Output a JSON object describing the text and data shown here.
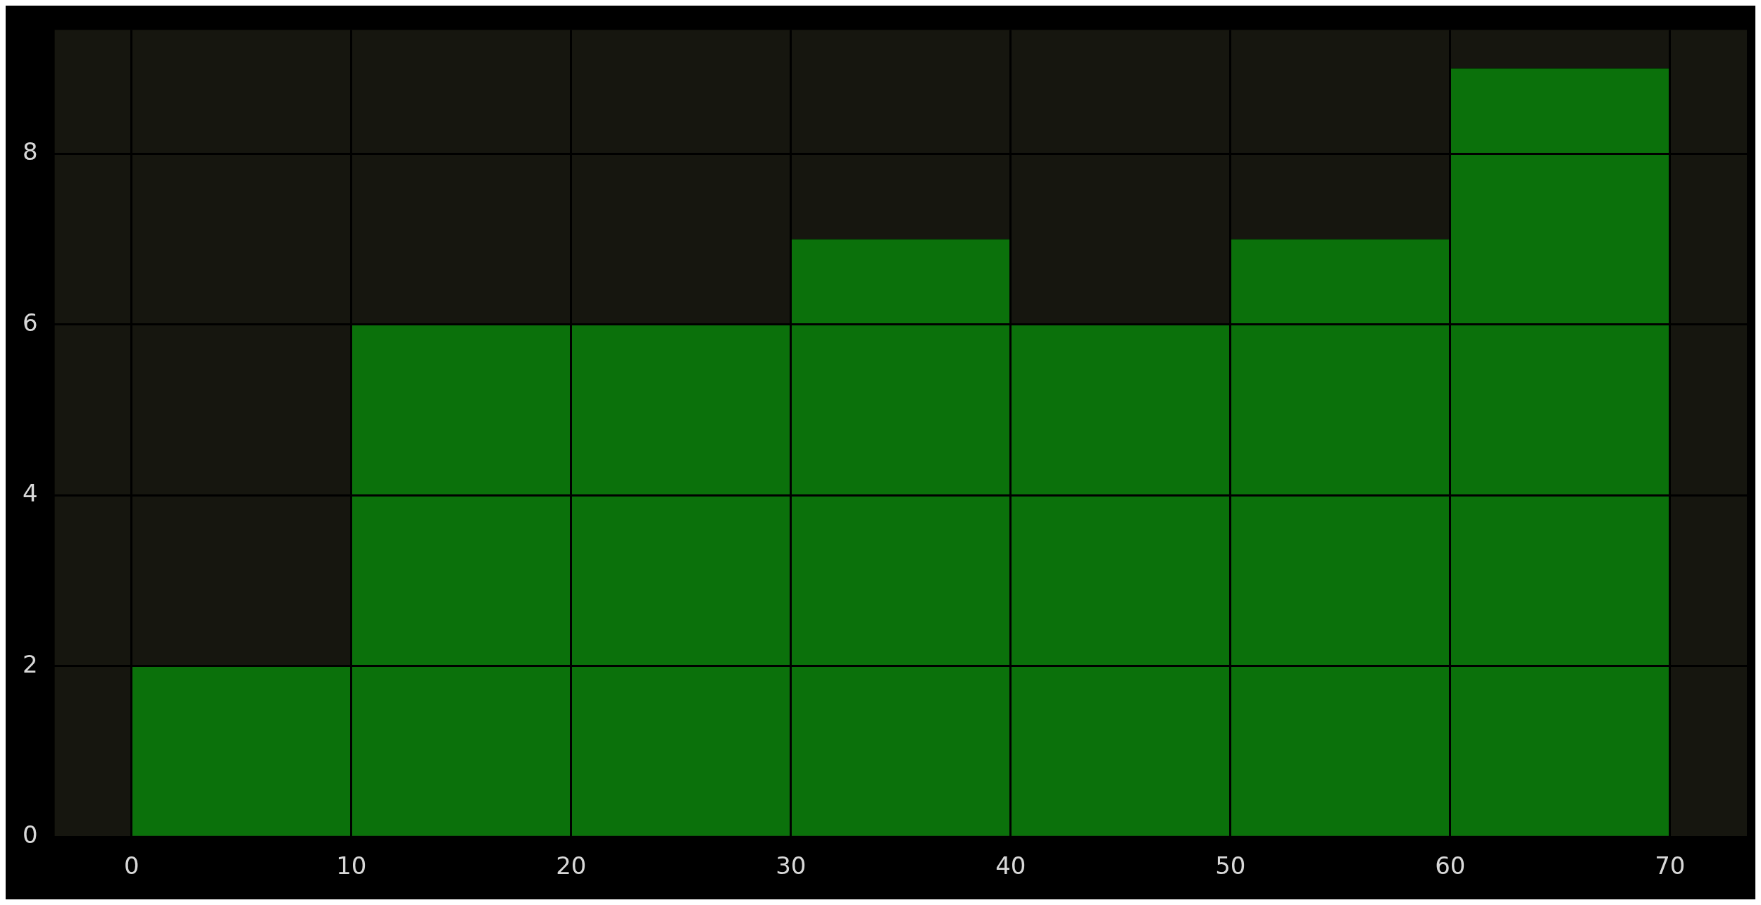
{
  "chart_data": {
    "type": "histogram",
    "bins": [
      0,
      10,
      20,
      30,
      40,
      50,
      60,
      70
    ],
    "values": [
      2,
      6,
      6,
      7,
      6,
      7,
      9
    ],
    "color": "#0b710b",
    "xlim": [
      -3.5,
      73.5
    ],
    "xticks": [
      0,
      10,
      20,
      30,
      40,
      50,
      60,
      70
    ],
    "ylim": [
      0,
      9.45
    ],
    "yticks": [
      0,
      2,
      4,
      6,
      8
    ],
    "grid": true
  }
}
